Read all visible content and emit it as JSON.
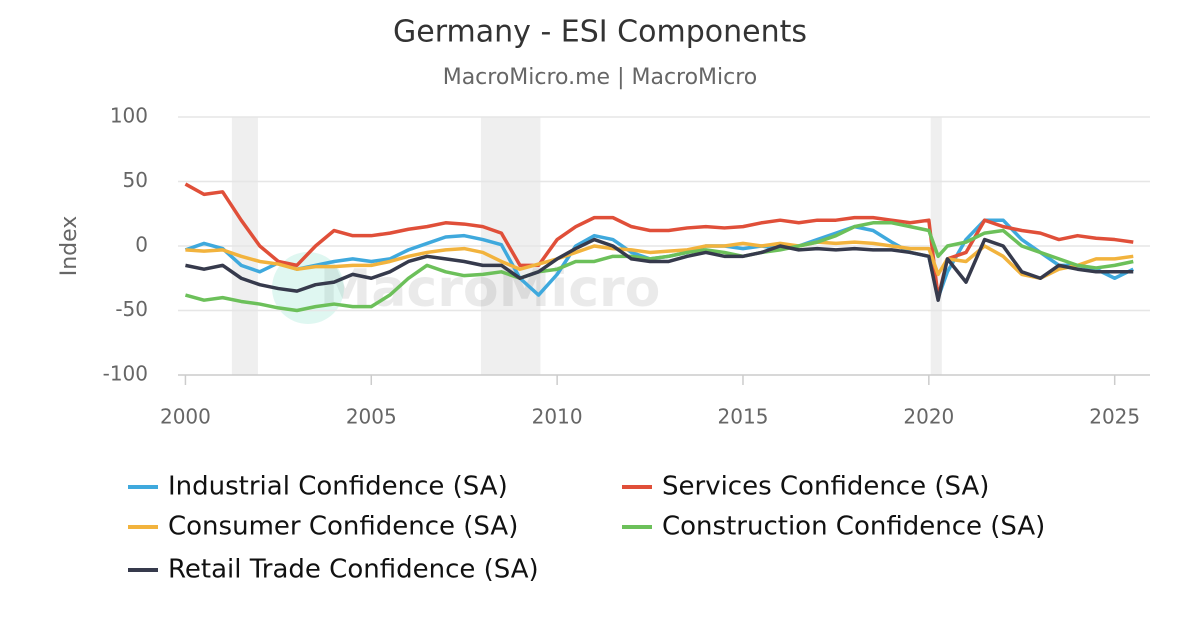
{
  "chart_data": {
    "type": "line",
    "title": "Germany - ESI Components",
    "subtitle": "MacroMicro.me | MacroMicro",
    "watermark": "MacroMicro",
    "y_label": "Index",
    "xlim": [
      1999.8,
      2025.95
    ],
    "xticks": [
      2000,
      2005,
      2010,
      2015,
      2020,
      2025
    ],
    "ylim": [
      -100,
      100
    ],
    "yticks": [
      -100,
      -50,
      0,
      50,
      100
    ],
    "grid": true,
    "recessions": [
      [
        2001.25,
        2001.95
      ],
      [
        2007.95,
        2009.55
      ],
      [
        2020.05,
        2020.35
      ]
    ],
    "x": [
      2000,
      2000.5,
      2001,
      2001.5,
      2002,
      2002.5,
      2003,
      2003.5,
      2004,
      2004.5,
      2005,
      2005.5,
      2006,
      2006.5,
      2007,
      2007.5,
      2008,
      2008.5,
      2009,
      2009.5,
      2010,
      2010.5,
      2011,
      2011.5,
      2012,
      2012.5,
      2013,
      2013.5,
      2014,
      2014.5,
      2015,
      2015.5,
      2016,
      2016.5,
      2017,
      2017.5,
      2018,
      2018.5,
      2019,
      2019.5,
      2020,
      2020.25,
      2020.5,
      2021,
      2021.5,
      2022,
      2022.5,
      2023,
      2023.5,
      2024,
      2024.5,
      2025,
      2025.5
    ],
    "series": [
      {
        "name": "Industrial Confidence (SA)",
        "color": "#3fa9dd",
        "values": [
          -3,
          2,
          -2,
          -15,
          -20,
          -13,
          -18,
          -15,
          -12,
          -10,
          -12,
          -10,
          -3,
          2,
          7,
          8,
          5,
          1,
          -25,
          -38,
          -22,
          0,
          8,
          5,
          -5,
          -10,
          -8,
          -5,
          0,
          0,
          -2,
          0,
          -2,
          0,
          5,
          10,
          15,
          12,
          3,
          -5,
          -8,
          -40,
          -20,
          5,
          20,
          20,
          5,
          -5,
          -15,
          -15,
          -18,
          -25,
          -18
        ]
      },
      {
        "name": "Services Confidence (SA)",
        "color": "#e04f39",
        "values": [
          48,
          40,
          42,
          20,
          0,
          -12,
          -15,
          0,
          12,
          8,
          8,
          10,
          13,
          15,
          18,
          17,
          15,
          10,
          -15,
          -15,
          5,
          15,
          22,
          22,
          15,
          12,
          12,
          14,
          15,
          14,
          15,
          18,
          20,
          18,
          20,
          20,
          22,
          22,
          20,
          18,
          20,
          -40,
          -10,
          -5,
          20,
          15,
          12,
          10,
          5,
          8,
          6,
          5,
          3
        ]
      },
      {
        "name": "Consumer Confidence (SA)",
        "color": "#f2b33d",
        "values": [
          -3,
          -4,
          -3,
          -8,
          -12,
          -14,
          -18,
          -16,
          -16,
          -15,
          -15,
          -12,
          -8,
          -5,
          -3,
          -2,
          -5,
          -12,
          -18,
          -14,
          -10,
          -5,
          0,
          -2,
          -3,
          -5,
          -4,
          -3,
          0,
          0,
          2,
          0,
          2,
          0,
          3,
          2,
          3,
          2,
          0,
          -2,
          -2,
          -22,
          -10,
          -12,
          0,
          -8,
          -22,
          -25,
          -18,
          -15,
          -10,
          -10,
          -8
        ]
      },
      {
        "name": "Construction Confidence (SA)",
        "color": "#6cc05a",
        "values": [
          -38,
          -42,
          -40,
          -43,
          -45,
          -48,
          -50,
          -47,
          -45,
          -47,
          -47,
          -38,
          -25,
          -15,
          -20,
          -23,
          -22,
          -20,
          -25,
          -20,
          -18,
          -12,
          -12,
          -8,
          -8,
          -10,
          -8,
          -5,
          -3,
          -5,
          -8,
          -5,
          -3,
          0,
          3,
          8,
          15,
          18,
          18,
          15,
          12,
          -8,
          0,
          3,
          10,
          12,
          0,
          -5,
          -10,
          -15,
          -17,
          -15,
          -12
        ]
      },
      {
        "name": "Retail Trade Confidence (SA)",
        "color": "#363a4c",
        "values": [
          -15,
          -18,
          -15,
          -25,
          -30,
          -33,
          -35,
          -30,
          -28,
          -22,
          -25,
          -20,
          -12,
          -8,
          -10,
          -12,
          -15,
          -15,
          -25,
          -20,
          -10,
          -2,
          5,
          0,
          -10,
          -12,
          -12,
          -8,
          -5,
          -8,
          -8,
          -5,
          0,
          -3,
          -2,
          -3,
          -2,
          -3,
          -3,
          -5,
          -8,
          -42,
          -10,
          -28,
          5,
          0,
          -20,
          -25,
          -15,
          -18,
          -20,
          -20,
          -20
        ]
      }
    ]
  }
}
